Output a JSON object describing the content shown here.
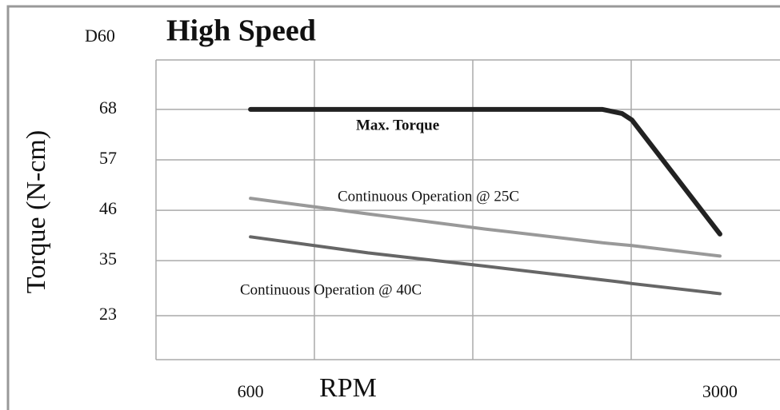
{
  "chart_data": {
    "type": "line",
    "label": "D60",
    "title": "High Speed",
    "ylabel": "Torque (N-cm)",
    "xlabel": "RPM",
    "x": [
      600,
      1200,
      1800,
      2400,
      2500,
      2550,
      3000
    ],
    "series": [
      {
        "name": "Max. Torque",
        "color": "#222222",
        "values": [
          68,
          68,
          68,
          68,
          67.1,
          65.7,
          40.8
        ]
      },
      {
        "name": "Continuous Operation @ 25C",
        "color": "#999999",
        "values": [
          48.6,
          45.2,
          41.9,
          38.9,
          38.5,
          38.3,
          36.0
        ]
      },
      {
        "name": "Continuous Operation @ 40C",
        "color": "#666666",
        "values": [
          40.2,
          36.7,
          33.8,
          30.8,
          30.3,
          30.0,
          27.8
        ]
      }
    ],
    "xlim": [
      117,
      3307
    ],
    "xticks": [
      600,
      3000
    ],
    "ylim": [
      13.4,
      78.8
    ],
    "yticks": [
      23,
      35,
      46,
      57,
      68
    ],
    "grid": true
  }
}
